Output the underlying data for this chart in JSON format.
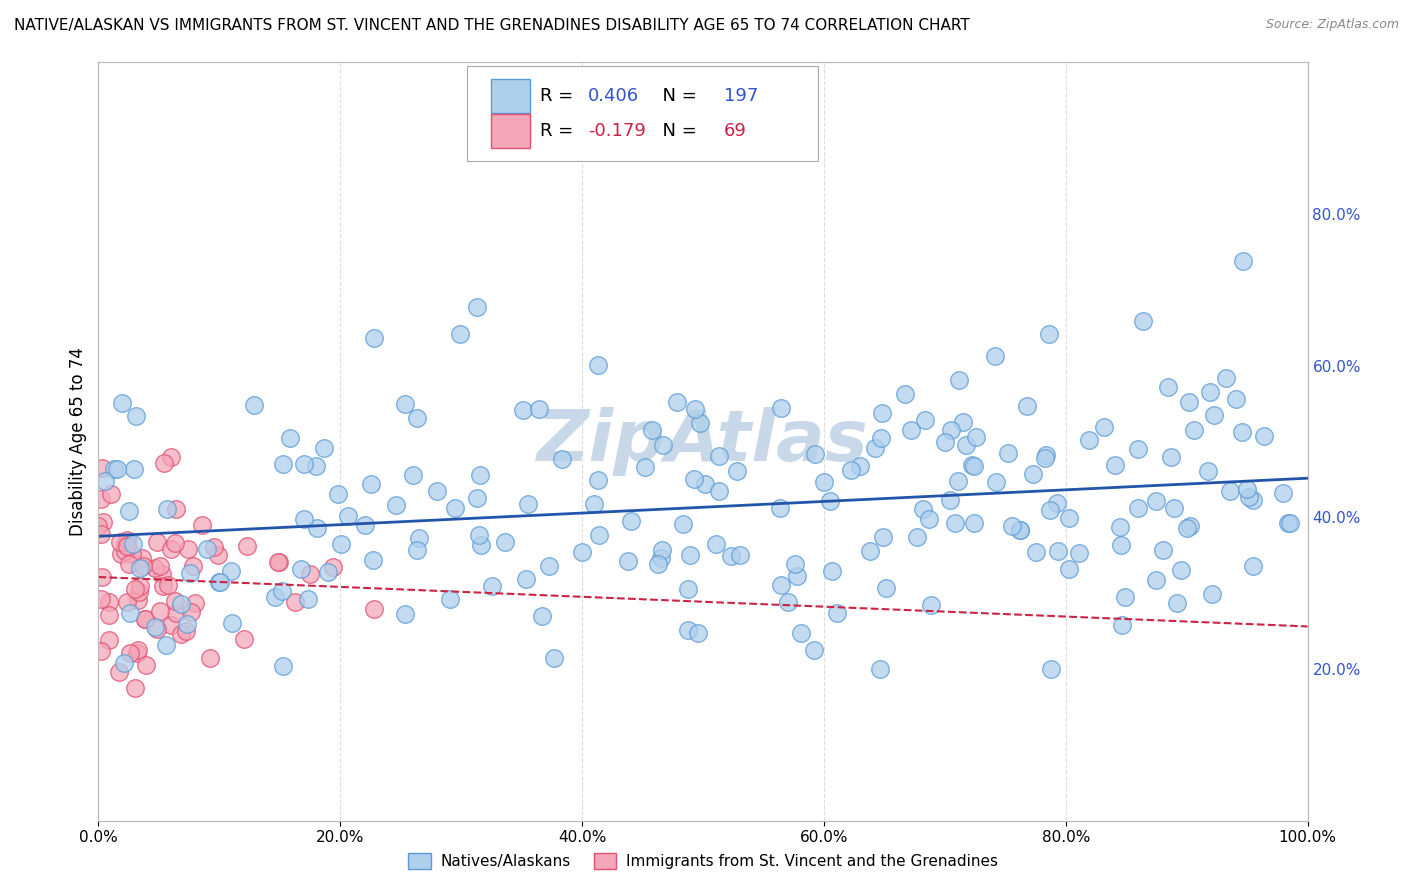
{
  "title": "NATIVE/ALASKAN VS IMMIGRANTS FROM ST. VINCENT AND THE GRENADINES DISABILITY AGE 65 TO 74 CORRELATION CHART",
  "source": "Source: ZipAtlas.com",
  "ylabel": "Disability Age 65 to 74",
  "xlim": [
    0.0,
    1.0
  ],
  "ylim": [
    0.0,
    1.0
  ],
  "xticks": [
    0.0,
    0.2,
    0.4,
    0.6,
    0.8,
    1.0
  ],
  "yticks": [],
  "xticklabels": [
    "0.0%",
    "20.0%",
    "40.0%",
    "60.0%",
    "80.0%",
    "100.0%"
  ],
  "right_yticks": [
    0.2,
    0.4,
    0.6,
    0.8
  ],
  "right_yticklabels": [
    "20.0%",
    "40.0%",
    "60.0%",
    "80.0%"
  ],
  "blue_R": 0.406,
  "blue_N": 197,
  "pink_R": -0.179,
  "pink_N": 69,
  "blue_color": "#afd0ed",
  "blue_edge": "#5b9bd5",
  "pink_color": "#f4a7b9",
  "pink_edge": "#e05070",
  "blue_line_color": "#2255aa",
  "pink_line_color": "#cc2244",
  "legend_label_blue": "Natives/Alaskans",
  "legend_label_pink": "Immigrants from St. Vincent and the Grenadines",
  "watermark": "ZipAtlas",
  "watermark_color": "#c8d8e8",
  "grid_color": "#dddddd",
  "title_fontsize": 11,
  "tick_fontsize": 11,
  "ylabel_fontsize": 12
}
